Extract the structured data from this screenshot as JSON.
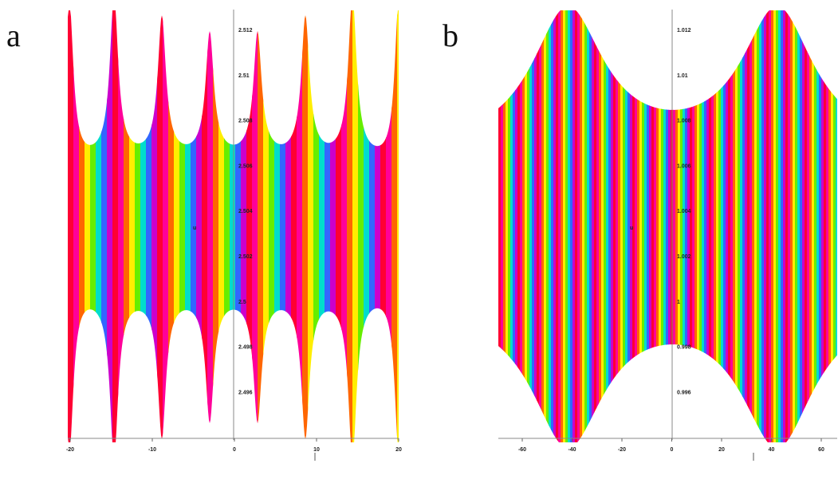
{
  "panels": [
    {
      "label": "a",
      "axis_label": "u",
      "xticks": [
        "-20",
        "-10",
        "0",
        "10",
        "20"
      ],
      "yticks": [
        "2.512",
        "2.51",
        "2.508",
        "2.506",
        "2.504",
        "2.502",
        "2.5",
        "2.498",
        "2.496"
      ]
    },
    {
      "label": "b",
      "axis_label": "u",
      "xticks": [
        "-60",
        "-40",
        "-20",
        "0",
        "20",
        "40",
        "60"
      ],
      "yticks": [
        "1.012",
        "1.01",
        "1.008",
        "1.006",
        "1.004",
        "1.002",
        "1",
        "0.998",
        "0.996"
      ]
    }
  ]
}
